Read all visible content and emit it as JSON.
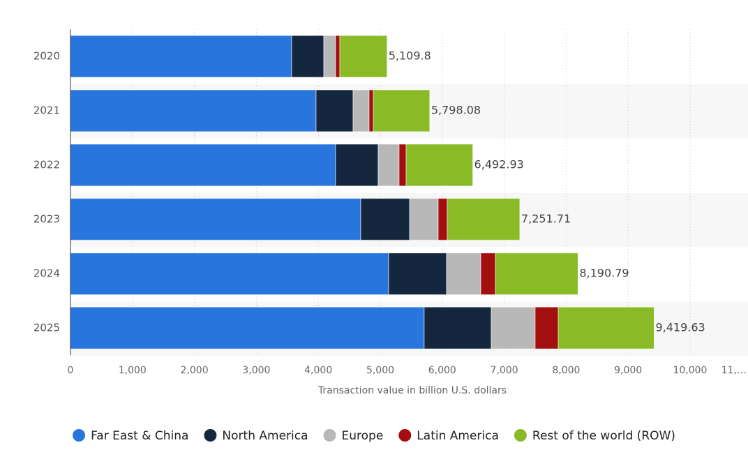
{
  "chart_data": {
    "type": "stacked-bar-horizontal",
    "x_label": "Transaction value in billion U.S. dollars",
    "categories": [
      "2020",
      "2021",
      "2022",
      "2023",
      "2024",
      "2025"
    ],
    "series": [
      {
        "name": "Far East & China",
        "color": "#2876dd",
        "values": [
          3570,
          3964,
          4279,
          4685,
          5135,
          5709
        ]
      },
      {
        "name": "North America",
        "color": "#14273e",
        "values": [
          518,
          597,
          687,
          788,
          935,
          1082
        ]
      },
      {
        "name": "Europe",
        "color": "#b8b8b8",
        "values": [
          191,
          259,
          338,
          462,
          552,
          709
        ]
      },
      {
        "name": "Latin America",
        "color": "#a30e0f",
        "values": [
          68,
          67,
          113,
          146,
          236,
          372
        ]
      },
      {
        "name": "Rest of the world (ROW)",
        "color": "#8abb26",
        "values": [
          762.8,
          911.08,
          1075.93,
          1170.71,
          1332.79,
          1547.63
        ]
      }
    ],
    "totals": [
      5109.8,
      5798.08,
      6492.93,
      7251.71,
      8190.79,
      9419.63
    ],
    "total_labels": [
      "5,109.8",
      "5,798.08",
      "6,492.93",
      "7,251.71",
      "8,190.79",
      "9,419.63"
    ],
    "xlim": [
      0,
      10935
    ],
    "xticks": [
      0,
      {
        "value": 1000,
        "label": "1,000"
      },
      {
        "value": 2000,
        "label": "2,000"
      },
      {
        "value": 3000,
        "label": "3,000"
      },
      {
        "value": 4000,
        "label": "4,000"
      },
      {
        "value": 5000,
        "label": "5,000"
      },
      {
        "value": 6000,
        "label": "6,000"
      },
      {
        "value": 7000,
        "label": "7,000"
      },
      {
        "value": 8000,
        "label": "8,000"
      },
      {
        "value": 9000,
        "label": "9,000"
      },
      {
        "value": 10000,
        "label": "10,000"
      },
      {
        "value": 11000,
        "label": "11,…"
      }
    ],
    "grid": true,
    "legend": "bottom"
  }
}
